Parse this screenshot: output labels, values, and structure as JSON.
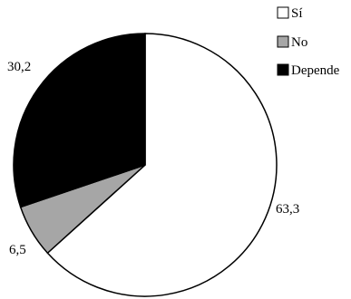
{
  "chart_data": {
    "type": "pie",
    "slices": [
      {
        "label": "Sí",
        "value": 63.3,
        "value_label": "63,3",
        "color": "#ffffff"
      },
      {
        "label": "No",
        "value": 6.5,
        "value_label": "6,5",
        "color": "#a6a6a6"
      },
      {
        "label": "Depende",
        "value": 30.2,
        "value_label": "30,2",
        "color": "#000000"
      }
    ],
    "start": "12 o'clock",
    "direction": "clockwise",
    "legend_position": "top-right",
    "outline_color": "#000000"
  }
}
